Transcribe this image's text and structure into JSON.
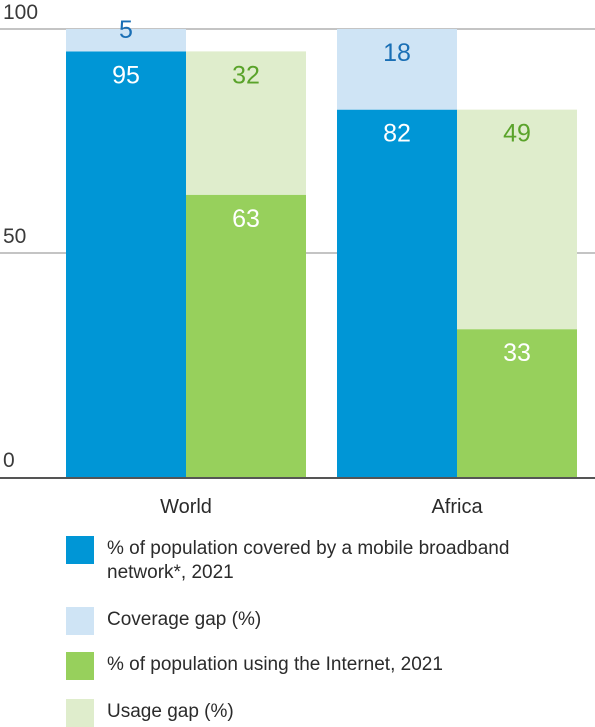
{
  "colors": {
    "coverage": "#0096d6",
    "coverage_gap": "#cfe4f5",
    "usage": "#97d05c",
    "usage_gap": "#dfedcc",
    "coverage_label": "#1a6fb5",
    "usage_label": "#5aa32a",
    "white_label": "#ffffff"
  },
  "chart_data": {
    "type": "bar",
    "stacked": true,
    "categories": [
      "World",
      "Africa"
    ],
    "yticks": [
      "0",
      "50",
      "100"
    ],
    "ylim": [
      0,
      100
    ],
    "grid": true,
    "legend_position": "bottom",
    "groups": [
      {
        "category": "World",
        "bars": [
          {
            "series": "coverage",
            "segments": [
              {
                "key": "coverage",
                "value": 95,
                "label": "95"
              },
              {
                "key": "coverage_gap",
                "value": 5,
                "label": "5"
              }
            ]
          },
          {
            "series": "usage",
            "segments": [
              {
                "key": "usage",
                "value": 63,
                "label": "63"
              },
              {
                "key": "usage_gap",
                "value": 32,
                "label": "32"
              }
            ]
          }
        ]
      },
      {
        "category": "Africa",
        "bars": [
          {
            "series": "coverage",
            "segments": [
              {
                "key": "coverage",
                "value": 82,
                "label": "82"
              },
              {
                "key": "coverage_gap",
                "value": 18,
                "label": "18"
              }
            ]
          },
          {
            "series": "usage",
            "segments": [
              {
                "key": "usage",
                "value": 33,
                "label": "33"
              },
              {
                "key": "usage_gap",
                "value": 49,
                "label": "49"
              }
            ]
          }
        ]
      }
    ],
    "legend": [
      {
        "key": "coverage",
        "label": "% of population covered by a mobile broadband network*, 2021"
      },
      {
        "key": "coverage_gap",
        "label": "Coverage gap (%)"
      },
      {
        "key": "usage",
        "label": "% of population using the Internet, 2021"
      },
      {
        "key": "usage_gap",
        "label": "Usage gap (%)"
      }
    ]
  }
}
